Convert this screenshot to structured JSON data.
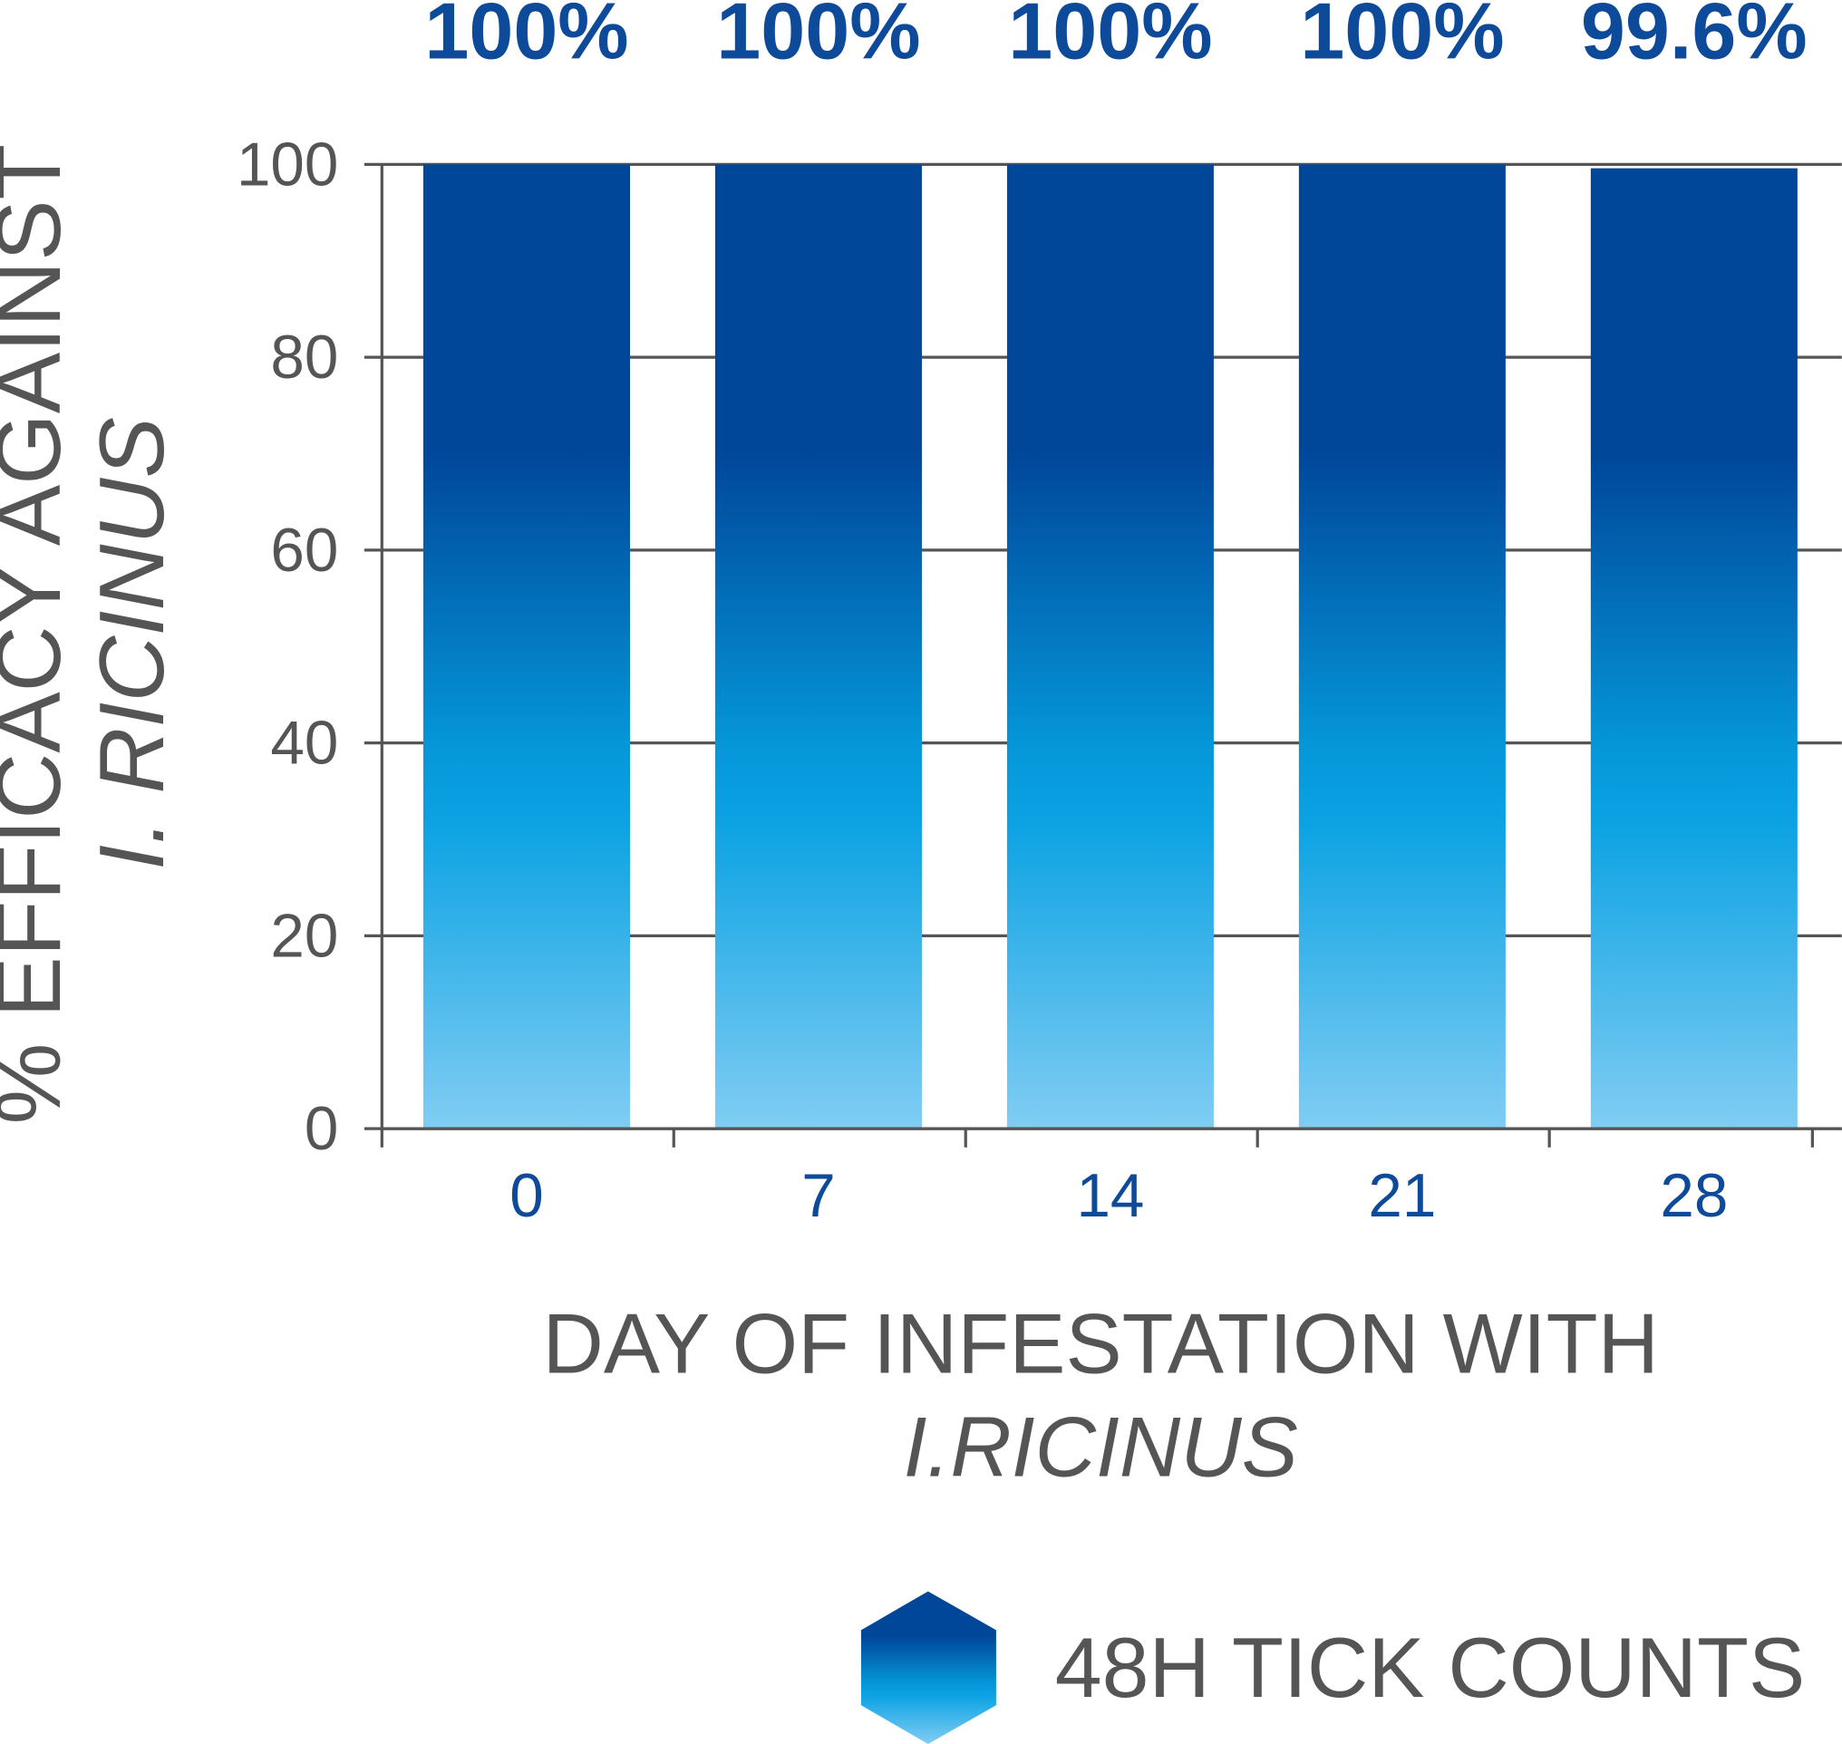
{
  "chart_data": {
    "type": "bar",
    "y_label": [
      "% EFFICACY AGAINST",
      "I. RICINUS"
    ],
    "x_label": [
      "DAY OF INFESTATION WITH",
      "I.RICINUS"
    ],
    "categories": [
      "0",
      "7",
      "14",
      "21",
      "28"
    ],
    "series": [
      {
        "name": "48H TICK COUNTS",
        "values": [
          100,
          100,
          100,
          100,
          99.6
        ],
        "value_labels": [
          "100%",
          "100%",
          "100%",
          "100%",
          "99.6%"
        ]
      }
    ],
    "ylim": [
      0,
      100
    ],
    "yticks": [
      0,
      20,
      40,
      60,
      80,
      100
    ],
    "grid": true
  }
}
